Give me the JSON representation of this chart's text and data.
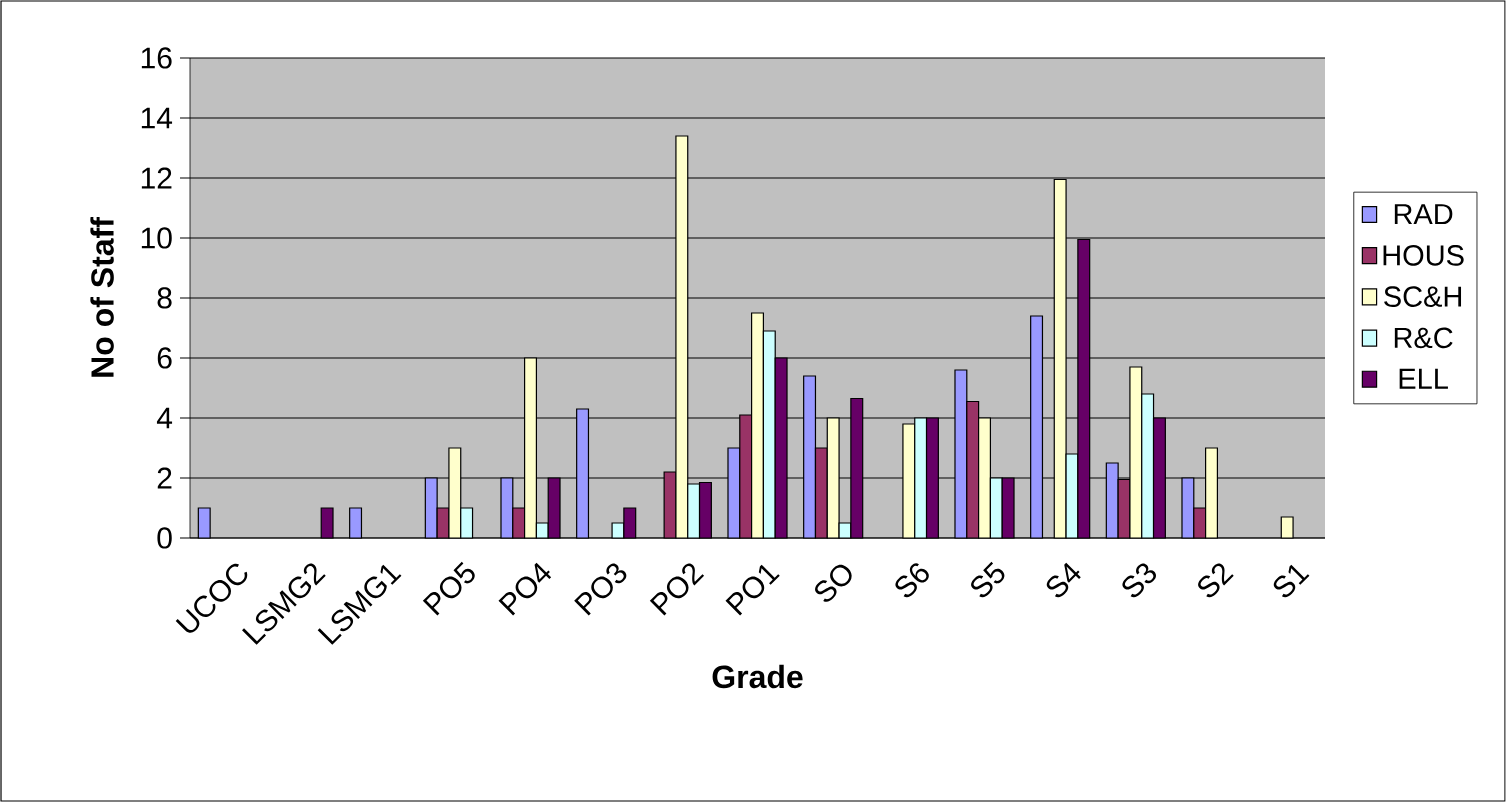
{
  "chart_data": {
    "type": "bar",
    "xlabel": "Grade",
    "ylabel": "No of Staff",
    "categories": [
      "UCOC",
      "LSMG2",
      "LSMG1",
      "PO5",
      "PO4",
      "PO3",
      "PO2",
      "PO1",
      "SO",
      "S6",
      "S5",
      "S4",
      "S3",
      "S2",
      "S1"
    ],
    "series": [
      {
        "name": "RAD",
        "color": "#9999ff",
        "values": [
          1,
          null,
          1,
          2,
          2,
          4.3,
          null,
          3,
          5.4,
          null,
          5.6,
          7.4,
          2.5,
          2,
          null
        ]
      },
      {
        "name": "HOUS",
        "color": "#993366",
        "values": [
          null,
          null,
          null,
          1,
          1,
          null,
          2.2,
          4.1,
          3,
          null,
          4.55,
          null,
          1.95,
          1,
          null
        ]
      },
      {
        "name": "SC&H",
        "color": "#ffffcc",
        "values": [
          null,
          null,
          null,
          3,
          6,
          null,
          13.4,
          7.5,
          4,
          3.8,
          4,
          11.95,
          5.7,
          3,
          0.7
        ]
      },
      {
        "name": "R&C",
        "color": "#ccffff",
        "values": [
          null,
          null,
          null,
          1,
          0.5,
          0.5,
          1.8,
          6.9,
          0.5,
          4,
          2,
          2.8,
          4.8,
          null,
          null
        ]
      },
      {
        "name": "ELL",
        "color": "#660066",
        "values": [
          null,
          1,
          null,
          null,
          2,
          1,
          1.85,
          6,
          4.65,
          4,
          2,
          9.95,
          4,
          null,
          null
        ]
      }
    ],
    "ylim": [
      0,
      16
    ],
    "yticks": [
      0,
      2,
      4,
      6,
      8,
      10,
      12,
      14,
      16
    ],
    "grid": "y",
    "legend": "right"
  }
}
